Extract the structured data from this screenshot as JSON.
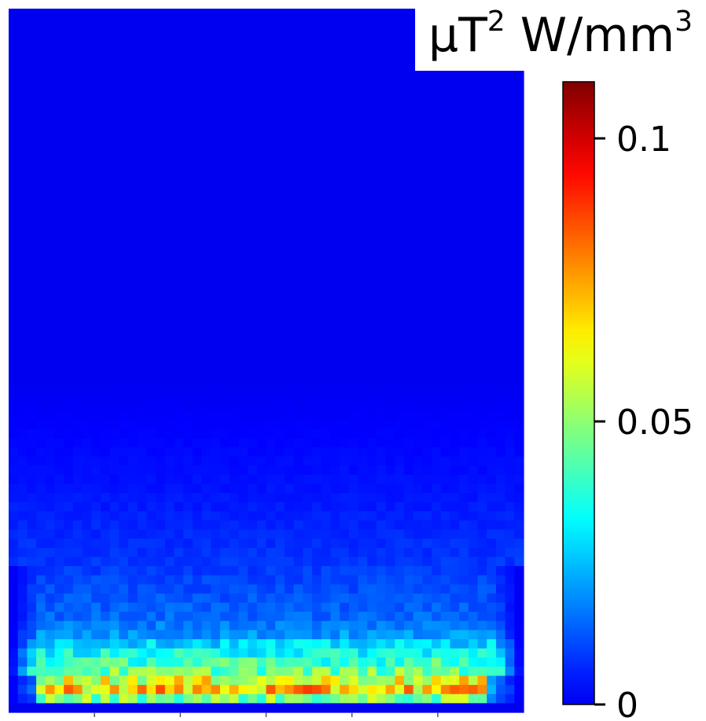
{
  "chart_data": {
    "type": "heatmap",
    "colormap": "jet",
    "title": "",
    "xlabel": "",
    "ylabel": "",
    "x_ticks": 5,
    "grid": false,
    "colorbar": {
      "unit_base": "µT",
      "unit_exp1": "2",
      "unit_mid": " W/mm",
      "unit_exp2": "3",
      "range": [
        0,
        0.11
      ],
      "ticks": [
        {
          "value": 0,
          "label": "0"
        },
        {
          "value": 0.05,
          "label": "0.05"
        },
        {
          "value": 0.1,
          "label": "0.1"
        }
      ],
      "placement": "right"
    },
    "grid_size": {
      "cols": 56,
      "rows": 77
    },
    "row_profile": [
      {
        "row": 40,
        "value": 0.0
      },
      {
        "row": 52,
        "value": 0.004
      },
      {
        "row": 60,
        "value": 0.008
      },
      {
        "row": 66,
        "value": 0.014
      },
      {
        "row": 68,
        "value": 0.02
      },
      {
        "row": 69,
        "value": 0.028
      },
      {
        "row": 70,
        "value": 0.034
      },
      {
        "row": 71,
        "value": 0.04
      },
      {
        "row": 72,
        "value": 0.046
      },
      {
        "row": 73,
        "value": 0.06
      },
      {
        "row": 74,
        "value": 0.07
      },
      {
        "row": 75,
        "value": 0.048
      },
      {
        "row": 76,
        "value": 0.0
      }
    ],
    "peak_value": 0.07
  }
}
